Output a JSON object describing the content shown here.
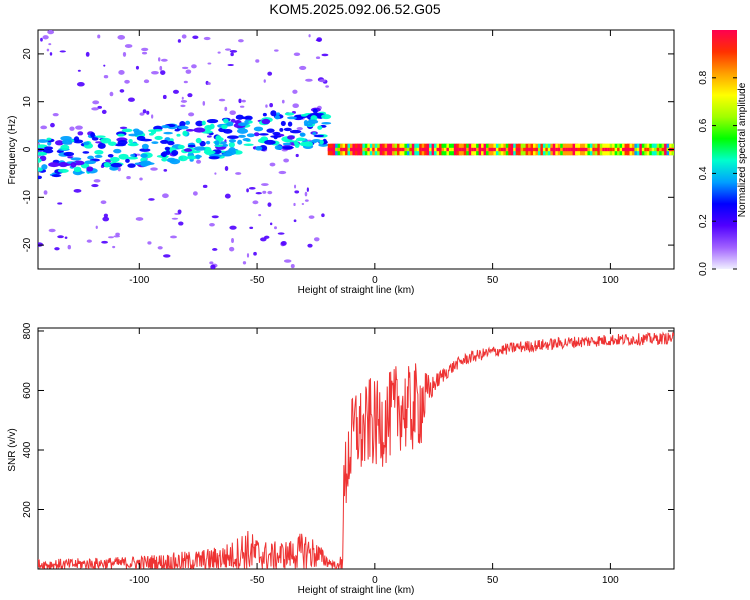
{
  "title": "KOM5.2025.092.06.52.G05",
  "colors": {
    "snr_line": "#ee3333",
    "axis": "#000000",
    "background": "#ffffff"
  },
  "chart_data": [
    {
      "type": "heatmap",
      "xlabel": "Height of straight line (km)",
      "ylabel": "Frequency (Hz)",
      "xlim": [
        -143,
        127
      ],
      "ylim": [
        -25,
        25
      ],
      "x_ticks": [
        -100,
        -50,
        0,
        50,
        100
      ],
      "y_ticks": [
        -20,
        -10,
        0,
        10,
        20
      ],
      "colorbar": {
        "label": "Normalized spectral amplitude",
        "range": [
          0,
          1
        ],
        "ticks": [
          0.0,
          0.2,
          0.4,
          0.6,
          0.8
        ],
        "colormap": [
          "#f0f0ff",
          "#a060ff",
          "#5000ff",
          "#0000ff",
          "#00a0ff",
          "#00ffcc",
          "#00ff00",
          "#a0ff00",
          "#ffff00",
          "#ffa000",
          "#ff3000",
          "#ff0050"
        ]
      },
      "features": [
        {
          "description": "scattered low-amplitude noise",
          "x_range": [
            -143,
            -20
          ],
          "freq_range": [
            -25,
            25
          ],
          "amplitude": 0.05
        },
        {
          "description": "rising signal trend",
          "x_range": [
            -143,
            -20
          ],
          "freq_start": -2,
          "freq_end": 5,
          "amplitude": 0.2
        },
        {
          "description": "stable carrier",
          "x_range": [
            -20,
            127
          ],
          "freq": 0,
          "amplitude_range": [
            0.4,
            1.0
          ]
        }
      ]
    },
    {
      "type": "line",
      "xlabel": "Height of straight line (km)",
      "ylabel": "SNR (v/v)",
      "xlim": [
        -143,
        127
      ],
      "ylim": [
        0,
        810
      ],
      "x_ticks": [
        -100,
        -50,
        0,
        50,
        100
      ],
      "y_ticks": [
        200,
        400,
        600,
        800
      ],
      "series": [
        {
          "color": "#ee3333",
          "x": [
            -143,
            -130,
            -120,
            -110,
            -100,
            -90,
            -80,
            -70,
            -60,
            -55,
            -50,
            -45,
            -40,
            -35,
            -30,
            -25,
            -20,
            -15,
            -14,
            -13,
            -12,
            -10,
            -8,
            -5,
            -2,
            0,
            5,
            10,
            15,
            20,
            22,
            25,
            30,
            35,
            40,
            50,
            60,
            70,
            80,
            90,
            100,
            110,
            120,
            127
          ],
          "y": [
            15,
            15,
            18,
            20,
            20,
            22,
            25,
            30,
            45,
            60,
            50,
            40,
            45,
            50,
            60,
            50,
            25,
            5,
            50,
            250,
            350,
            420,
            480,
            450,
            500,
            480,
            500,
            550,
            530,
            560,
            580,
            620,
            660,
            690,
            710,
            730,
            745,
            752,
            760,
            765,
            770,
            772,
            774,
            776
          ],
          "noise_amplitude": [
            20,
            20,
            20,
            20,
            25,
            30,
            35,
            40,
            50,
            80,
            60,
            50,
            50,
            50,
            70,
            50,
            20,
            10,
            100,
            150,
            150,
            150,
            150,
            150,
            150,
            150,
            150,
            150,
            150,
            150,
            80,
            30,
            25,
            20,
            20,
            20,
            20,
            20,
            20,
            20,
            20,
            20,
            20,
            20
          ]
        }
      ]
    }
  ]
}
